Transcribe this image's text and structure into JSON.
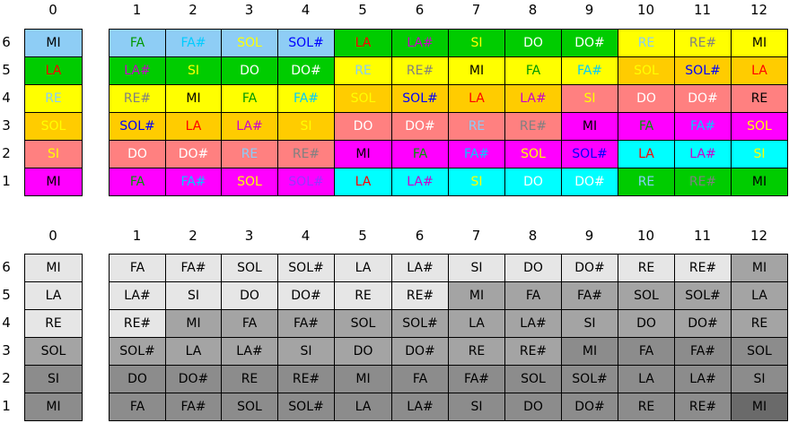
{
  "colors": {
    "lb": "#8ecdf5",
    "gr": "#00cc00",
    "ye": "#ffff00",
    "or": "#ffcc00",
    "sa": "#ff8080",
    "ma": "#ff00ff",
    "cy": "#00ffff",
    "g1": "#e6e6e6",
    "g2": "#bdbdbd",
    "g3": "#a4a4a4",
    "g4": "#8c8c8c",
    "g5": "#6a6a6a",
    "t_gr": "#009900",
    "t_cy": "#00ccff",
    "t_ye": "#ffff00",
    "t_bl": "#0000ff",
    "t_re": "#ff0000",
    "t_ma": "#cc00cc",
    "t_wh": "#ffffff",
    "t_sk": "#87cefa",
    "t_gy": "#808080",
    "t_bk": "#000000",
    "t_pu": "#9933ff"
  },
  "column_numbers": [
    "0",
    "1",
    "2",
    "3",
    "4",
    "5",
    "6",
    "7",
    "8",
    "9",
    "10",
    "11",
    "12"
  ],
  "string_numbers": [
    "6",
    "5",
    "4",
    "3",
    "2",
    "1"
  ],
  "color_grid": [
    [
      [
        "MI",
        "lb",
        "t_bk"
      ],
      [
        "FA",
        "lb",
        "t_gr"
      ],
      [
        "FA#",
        "lb",
        "t_cy"
      ],
      [
        "SOL",
        "lb",
        "t_ye"
      ],
      [
        "SOL#",
        "lb",
        "t_bl"
      ],
      [
        "LA",
        "gr",
        "t_re"
      ],
      [
        "LA#",
        "gr",
        "t_ma"
      ],
      [
        "SI",
        "gr",
        "t_ye"
      ],
      [
        "DO",
        "gr",
        "t_wh"
      ],
      [
        "DO#",
        "gr",
        "t_wh"
      ],
      [
        "RE",
        "ye",
        "t_sk"
      ],
      [
        "RE#",
        "ye",
        "t_gy"
      ],
      [
        "MI",
        "ye",
        "t_bk"
      ]
    ],
    [
      [
        "LA",
        "gr",
        "t_re"
      ],
      [
        "LA#",
        "gr",
        "t_ma"
      ],
      [
        "SI",
        "gr",
        "t_ye"
      ],
      [
        "DO",
        "gr",
        "t_wh"
      ],
      [
        "DO#",
        "gr",
        "t_wh"
      ],
      [
        "RE",
        "ye",
        "t_sk"
      ],
      [
        "RE#",
        "ye",
        "t_gy"
      ],
      [
        "MI",
        "ye",
        "t_bk"
      ],
      [
        "FA",
        "ye",
        "t_gr"
      ],
      [
        "FA#",
        "ye",
        "t_cy"
      ],
      [
        "SOL",
        "or",
        "t_ye"
      ],
      [
        "SOL#",
        "or",
        "t_bl"
      ],
      [
        "LA",
        "or",
        "t_re"
      ]
    ],
    [
      [
        "RE",
        "ye",
        "t_sk"
      ],
      [
        "RE#",
        "ye",
        "t_gy"
      ],
      [
        "MI",
        "ye",
        "t_bk"
      ],
      [
        "FA",
        "ye",
        "t_gr"
      ],
      [
        "FA#",
        "ye",
        "t_cy"
      ],
      [
        "SOL",
        "or",
        "t_ye"
      ],
      [
        "SOL#",
        "or",
        "t_bl"
      ],
      [
        "LA",
        "or",
        "t_re"
      ],
      [
        "LA#",
        "or",
        "t_ma"
      ],
      [
        "SI",
        "sa",
        "t_ye"
      ],
      [
        "DO",
        "sa",
        "t_wh"
      ],
      [
        "DO#",
        "sa",
        "t_wh"
      ],
      [
        "RE",
        "sa",
        "t_bk"
      ]
    ],
    [
      [
        "SOL",
        "or",
        "t_ye"
      ],
      [
        "SOL#",
        "or",
        "t_bl"
      ],
      [
        "LA",
        "or",
        "t_re"
      ],
      [
        "LA#",
        "or",
        "t_ma"
      ],
      [
        "SI",
        "or",
        "t_ye"
      ],
      [
        "DO",
        "sa",
        "t_wh"
      ],
      [
        "DO#",
        "sa",
        "t_wh"
      ],
      [
        "RE",
        "sa",
        "t_sk"
      ],
      [
        "RE#",
        "sa",
        "t_gy"
      ],
      [
        "MI",
        "ma",
        "t_bk"
      ],
      [
        "FA",
        "ma",
        "t_gr"
      ],
      [
        "FA#",
        "ma",
        "t_cy"
      ],
      [
        "SOL",
        "ma",
        "t_ye"
      ]
    ],
    [
      [
        "SI",
        "sa",
        "t_ye"
      ],
      [
        "DO",
        "sa",
        "t_wh"
      ],
      [
        "DO#",
        "sa",
        "t_wh"
      ],
      [
        "RE",
        "sa",
        "t_sk"
      ],
      [
        "RE#",
        "sa",
        "t_gy"
      ],
      [
        "MI",
        "ma",
        "t_bk"
      ],
      [
        "FA",
        "ma",
        "t_gr"
      ],
      [
        "FA#",
        "ma",
        "t_cy"
      ],
      [
        "SOL",
        "ma",
        "t_ye"
      ],
      [
        "SOL#",
        "ma",
        "t_bl"
      ],
      [
        "LA",
        "cy",
        "t_re"
      ],
      [
        "LA#",
        "cy",
        "t_ma"
      ],
      [
        "SI",
        "cy",
        "t_ye"
      ]
    ],
    [
      [
        "MI",
        "ma",
        "t_bk"
      ],
      [
        "FA",
        "ma",
        "t_gr"
      ],
      [
        "FA#",
        "ma",
        "t_cy"
      ],
      [
        "SOL",
        "ma",
        "t_ye"
      ],
      [
        "SOL#",
        "ma",
        "t_pu"
      ],
      [
        "LA",
        "cy",
        "t_re"
      ],
      [
        "LA#",
        "cy",
        "t_ma"
      ],
      [
        "SI",
        "cy",
        "t_ye"
      ],
      [
        "DO",
        "cy",
        "t_wh"
      ],
      [
        "DO#",
        "cy",
        "t_wh"
      ],
      [
        "RE",
        "gr",
        "t_sk"
      ],
      [
        "RE#",
        "gr",
        "t_gy"
      ],
      [
        "MI",
        "gr",
        "t_bk"
      ]
    ]
  ],
  "gray_grid": [
    [
      [
        "MI",
        "g1"
      ],
      [
        "FA",
        "g1"
      ],
      [
        "FA#",
        "g1"
      ],
      [
        "SOL",
        "g1"
      ],
      [
        "SOL#",
        "g1"
      ],
      [
        "LA",
        "g1"
      ],
      [
        "LA#",
        "g1"
      ],
      [
        "SI",
        "g1"
      ],
      [
        "DO",
        "g1"
      ],
      [
        "DO#",
        "g1"
      ],
      [
        "RE",
        "g1"
      ],
      [
        "RE#",
        "g1"
      ],
      [
        "MI",
        "g3"
      ]
    ],
    [
      [
        "LA",
        "g1"
      ],
      [
        "LA#",
        "g1"
      ],
      [
        "SI",
        "g1"
      ],
      [
        "DO",
        "g1"
      ],
      [
        "DO#",
        "g1"
      ],
      [
        "RE",
        "g1"
      ],
      [
        "RE#",
        "g1"
      ],
      [
        "MI",
        "g3"
      ],
      [
        "FA",
        "g3"
      ],
      [
        "FA#",
        "g3"
      ],
      [
        "SOL",
        "g3"
      ],
      [
        "SOL#",
        "g3"
      ],
      [
        "LA",
        "g3"
      ]
    ],
    [
      [
        "RE",
        "g1"
      ],
      [
        "RE#",
        "g1"
      ],
      [
        "MI",
        "g3"
      ],
      [
        "FA",
        "g3"
      ],
      [
        "FA#",
        "g3"
      ],
      [
        "SOL",
        "g3"
      ],
      [
        "SOL#",
        "g3"
      ],
      [
        "LA",
        "g3"
      ],
      [
        "LA#",
        "g3"
      ],
      [
        "SI",
        "g3"
      ],
      [
        "DO",
        "g3"
      ],
      [
        "DO#",
        "g3"
      ],
      [
        "RE",
        "g3"
      ]
    ],
    [
      [
        "SOL",
        "g3"
      ],
      [
        "SOL#",
        "g3"
      ],
      [
        "LA",
        "g3"
      ],
      [
        "LA#",
        "g3"
      ],
      [
        "SI",
        "g3"
      ],
      [
        "DO",
        "g3"
      ],
      [
        "DO#",
        "g3"
      ],
      [
        "RE",
        "g3"
      ],
      [
        "RE#",
        "g3"
      ],
      [
        "MI",
        "g4"
      ],
      [
        "FA",
        "g4"
      ],
      [
        "FA#",
        "g4"
      ],
      [
        "SOL",
        "g4"
      ]
    ],
    [
      [
        "SI",
        "g4"
      ],
      [
        "DO",
        "g4"
      ],
      [
        "DO#",
        "g4"
      ],
      [
        "RE",
        "g4"
      ],
      [
        "RE#",
        "g4"
      ],
      [
        "MI",
        "g4"
      ],
      [
        "FA",
        "g4"
      ],
      [
        "FA#",
        "g4"
      ],
      [
        "SOL",
        "g4"
      ],
      [
        "SOL#",
        "g4"
      ],
      [
        "LA",
        "g4"
      ],
      [
        "LA#",
        "g4"
      ],
      [
        "SI",
        "g4"
      ]
    ],
    [
      [
        "MI",
        "g4"
      ],
      [
        "FA",
        "g4"
      ],
      [
        "FA#",
        "g4"
      ],
      [
        "SOL",
        "g4"
      ],
      [
        "SOL#",
        "g4"
      ],
      [
        "LA",
        "g4"
      ],
      [
        "LA#",
        "g4"
      ],
      [
        "SI",
        "g4"
      ],
      [
        "DO",
        "g4"
      ],
      [
        "DO#",
        "g4"
      ],
      [
        "RE",
        "g4"
      ],
      [
        "RE#",
        "g4"
      ],
      [
        "MI",
        "g5"
      ]
    ]
  ]
}
